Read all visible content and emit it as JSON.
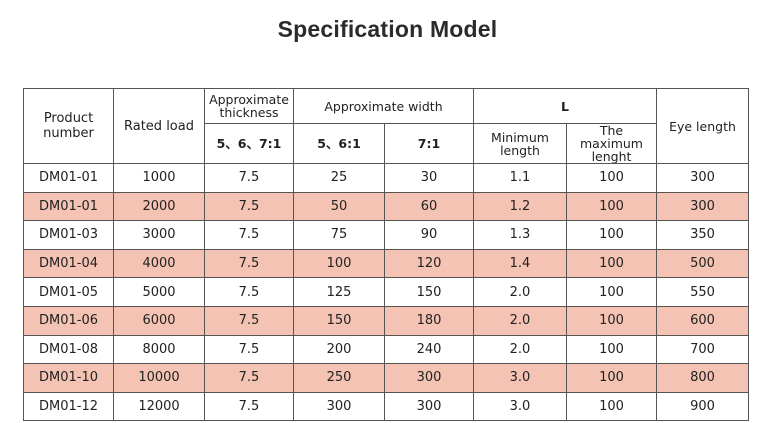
{
  "title": "Specification Model",
  "colors": {
    "shaded_row": "#f5c3b3",
    "border": "#555555",
    "title": "#2b2b2b"
  },
  "headers": {
    "product_number": "Product number",
    "rated_load": "Rated load",
    "approx_thickness": "Approximate thickness",
    "approx_thickness_sub": "5、6、7:1",
    "approx_width": "Approximate width",
    "approx_width_sub1": "5、6:1",
    "approx_width_sub2": "7:1",
    "l": "L",
    "min_length": "Minimum length",
    "max_length": "The maximum lenght",
    "eye_length": "Eye length"
  },
  "rows": [
    [
      "DM01-01",
      "1000",
      "7.5",
      "25",
      "30",
      "1.1",
      "100",
      "300"
    ],
    [
      "DM01-01",
      "2000",
      "7.5",
      "50",
      "60",
      "1.2",
      "100",
      "300"
    ],
    [
      "DM01-03",
      "3000",
      "7.5",
      "75",
      "90",
      "1.3",
      "100",
      "350"
    ],
    [
      "DM01-04",
      "4000",
      "7.5",
      "100",
      "120",
      "1.4",
      "100",
      "500"
    ],
    [
      "DM01-05",
      "5000",
      "7.5",
      "125",
      "150",
      "2.0",
      "100",
      "550"
    ],
    [
      "DM01-06",
      "6000",
      "7.5",
      "150",
      "180",
      "2.0",
      "100",
      "600"
    ],
    [
      "DM01-08",
      "8000",
      "7.5",
      "200",
      "240",
      "2.0",
      "100",
      "700"
    ],
    [
      "DM01-10",
      "10000",
      "7.5",
      "250",
      "300",
      "3.0",
      "100",
      "800"
    ],
    [
      "DM01-12",
      "12000",
      "7.5",
      "300",
      "300",
      "3.0",
      "100",
      "900"
    ]
  ]
}
